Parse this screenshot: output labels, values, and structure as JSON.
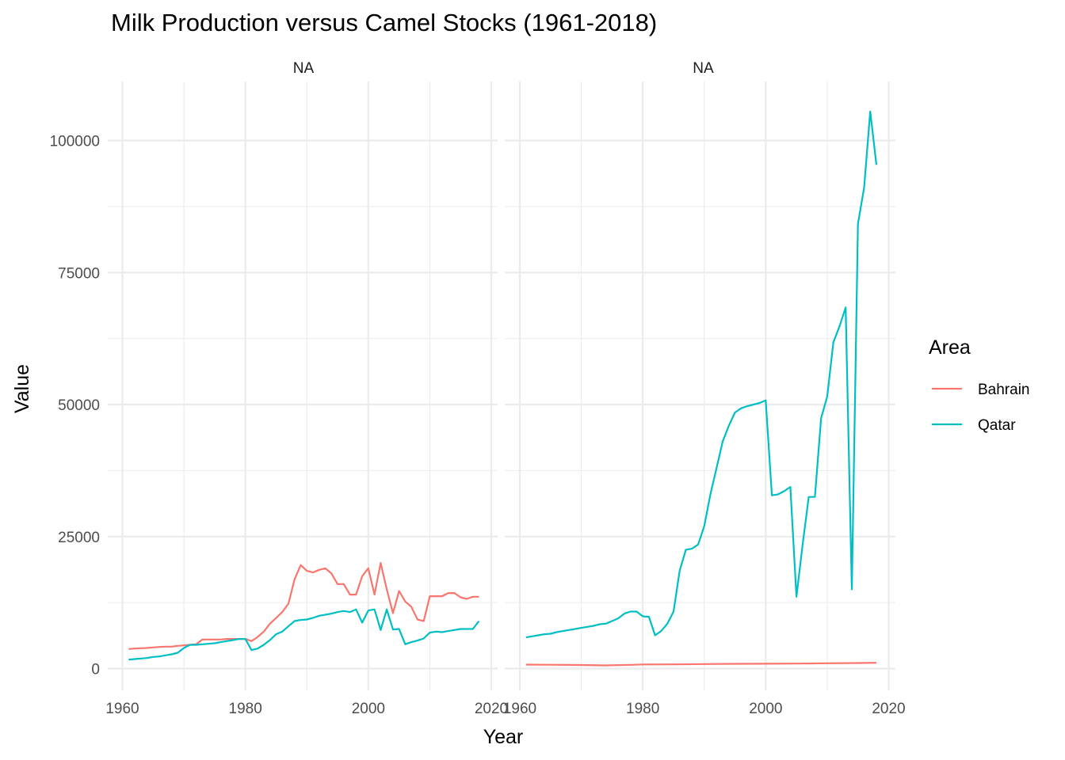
{
  "chart_data": {
    "type": "line",
    "title": "Milk Production versus Camel Stocks (1961-2018)",
    "xlabel": "Year",
    "ylabel": "Value",
    "xlim": [
      1960,
      2020
    ],
    "ylim": [
      0,
      110000
    ],
    "x_ticks": [
      1960,
      1980,
      2000,
      2020
    ],
    "x_tick_labels": [
      "1960",
      "1980",
      "2000",
      "2020"
    ],
    "y_ticks": [
      0,
      25000,
      50000,
      75000,
      100000
    ],
    "y_tick_labels": [
      "0",
      "25000",
      "50000",
      "75000",
      "100000"
    ],
    "grid": true,
    "legend": {
      "title": "Area",
      "position": "right",
      "entries": [
        {
          "name": "Bahrain",
          "color": "#F8766D"
        },
        {
          "name": "Qatar",
          "color": "#00BFC4"
        }
      ]
    },
    "panels": [
      {
        "strip_label": "NA",
        "series": [
          {
            "name": "Bahrain",
            "color": "#F8766D",
            "points": [
              [
                1961,
                3700
              ],
              [
                1962,
                3800
              ],
              [
                1963,
                3850
              ],
              [
                1964,
                3900
              ],
              [
                1965,
                4000
              ],
              [
                1966,
                4100
              ],
              [
                1967,
                4150
              ],
              [
                1968,
                4150
              ],
              [
                1969,
                4300
              ],
              [
                1970,
                4400
              ],
              [
                1971,
                4500
              ],
              [
                1972,
                4600
              ],
              [
                1973,
                5500
              ],
              [
                1974,
                5500
              ],
              [
                1975,
                5500
              ],
              [
                1976,
                5500
              ],
              [
                1977,
                5600
              ],
              [
                1978,
                5600
              ],
              [
                1979,
                5600
              ],
              [
                1980,
                5600
              ],
              [
                1981,
                5200
              ],
              [
                1982,
                6000
              ],
              [
                1983,
                7000
              ],
              [
                1984,
                8500
              ],
              [
                1985,
                9600
              ],
              [
                1986,
                10700
              ],
              [
                1987,
                12300
              ],
              [
                1988,
                16900
              ],
              [
                1989,
                19600
              ],
              [
                1990,
                18500
              ],
              [
                1991,
                18200
              ],
              [
                1992,
                18700
              ],
              [
                1993,
                19000
              ],
              [
                1994,
                18000
              ],
              [
                1995,
                16000
              ],
              [
                1996,
                16000
              ],
              [
                1997,
                14000
              ],
              [
                1998,
                14000
              ],
              [
                1999,
                17500
              ],
              [
                2000,
                19000
              ],
              [
                2001,
                14000
              ],
              [
                2002,
                20000
              ],
              [
                2003,
                15000
              ],
              [
                2004,
                10500
              ],
              [
                2005,
                14700
              ],
              [
                2006,
                12700
              ],
              [
                2007,
                11700
              ],
              [
                2008,
                9300
              ],
              [
                2009,
                9000
              ],
              [
                2010,
                13700
              ],
              [
                2011,
                13700
              ],
              [
                2012,
                13700
              ],
              [
                2013,
                14300
              ],
              [
                2014,
                14300
              ],
              [
                2015,
                13500
              ],
              [
                2016,
                13200
              ],
              [
                2017,
                13600
              ],
              [
                2018,
                13600
              ]
            ]
          },
          {
            "name": "Qatar",
            "color": "#00BFC4",
            "points": [
              [
                1961,
                1700
              ],
              [
                1962,
                1800
              ],
              [
                1963,
                1900
              ],
              [
                1964,
                2000
              ],
              [
                1965,
                2200
              ],
              [
                1966,
                2300
              ],
              [
                1967,
                2500
              ],
              [
                1968,
                2700
              ],
              [
                1969,
                3000
              ],
              [
                1970,
                3900
              ],
              [
                1971,
                4500
              ],
              [
                1972,
                4500
              ],
              [
                1973,
                4600
              ],
              [
                1974,
                4700
              ],
              [
                1975,
                4800
              ],
              [
                1976,
                5000
              ],
              [
                1977,
                5200
              ],
              [
                1978,
                5400
              ],
              [
                1979,
                5600
              ],
              [
                1980,
                5600
              ],
              [
                1981,
                3500
              ],
              [
                1982,
                3800
              ],
              [
                1983,
                4500
              ],
              [
                1984,
                5400
              ],
              [
                1985,
                6500
              ],
              [
                1986,
                7000
              ],
              [
                1987,
                8000
              ],
              [
                1988,
                9000
              ],
              [
                1989,
                9200
              ],
              [
                1990,
                9300
              ],
              [
                1991,
                9600
              ],
              [
                1992,
                10000
              ],
              [
                1993,
                10200
              ],
              [
                1994,
                10400
              ],
              [
                1995,
                10700
              ],
              [
                1996,
                10900
              ],
              [
                1997,
                10700
              ],
              [
                1998,
                11200
              ],
              [
                1999,
                8700
              ],
              [
                2000,
                11000
              ],
              [
                2001,
                11200
              ],
              [
                2002,
                7300
              ],
              [
                2003,
                11200
              ],
              [
                2004,
                7400
              ],
              [
                2005,
                7500
              ],
              [
                2006,
                4600
              ],
              [
                2007,
                5000
              ],
              [
                2008,
                5300
              ],
              [
                2009,
                5700
              ],
              [
                2010,
                6800
              ],
              [
                2011,
                7000
              ],
              [
                2012,
                6900
              ],
              [
                2013,
                7100
              ],
              [
                2014,
                7300
              ],
              [
                2015,
                7500
              ],
              [
                2016,
                7500
              ],
              [
                2017,
                7500
              ],
              [
                2018,
                9000
              ]
            ]
          }
        ]
      },
      {
        "strip_label": "NA",
        "series": [
          {
            "name": "Bahrain",
            "color": "#F8766D",
            "points": [
              [
                1961,
                750
              ],
              [
                1965,
                720
              ],
              [
                1970,
                680
              ],
              [
                1974,
                600
              ],
              [
                1978,
                700
              ],
              [
                1980,
                780
              ],
              [
                1985,
                800
              ],
              [
                1990,
                860
              ],
              [
                1995,
                900
              ],
              [
                2000,
                920
              ],
              [
                2005,
                950
              ],
              [
                2010,
                1000
              ],
              [
                2015,
                1050
              ],
              [
                2018,
                1100
              ]
            ]
          },
          {
            "name": "Qatar",
            "color": "#00BFC4",
            "points": [
              [
                1961,
                5900
              ],
              [
                1962,
                6100
              ],
              [
                1963,
                6300
              ],
              [
                1964,
                6500
              ],
              [
                1965,
                6600
              ],
              [
                1966,
                6900
              ],
              [
                1967,
                7100
              ],
              [
                1968,
                7300
              ],
              [
                1969,
                7500
              ],
              [
                1970,
                7700
              ],
              [
                1971,
                7900
              ],
              [
                1972,
                8100
              ],
              [
                1973,
                8400
              ],
              [
                1974,
                8500
              ],
              [
                1975,
                9000
              ],
              [
                1976,
                9500
              ],
              [
                1977,
                10400
              ],
              [
                1978,
                10800
              ],
              [
                1979,
                10800
              ],
              [
                1980,
                9900
              ],
              [
                1981,
                9800
              ],
              [
                1982,
                6300
              ],
              [
                1983,
                7100
              ],
              [
                1984,
                8500
              ],
              [
                1985,
                10800
              ],
              [
                1986,
                18500
              ],
              [
                1987,
                22500
              ],
              [
                1988,
                22700
              ],
              [
                1989,
                23500
              ],
              [
                1990,
                27000
              ],
              [
                1991,
                33000
              ],
              [
                1992,
                38000
              ],
              [
                1993,
                43000
              ],
              [
                1994,
                46000
              ],
              [
                1995,
                48500
              ],
              [
                1996,
                49300
              ],
              [
                1997,
                49700
              ],
              [
                1998,
                50000
              ],
              [
                1999,
                50300
              ],
              [
                2000,
                50800
              ],
              [
                2001,
                32800
              ],
              [
                2002,
                33000
              ],
              [
                2003,
                33600
              ],
              [
                2004,
                34400
              ],
              [
                2005,
                13600
              ],
              [
                2006,
                23500
              ],
              [
                2007,
                32500
              ],
              [
                2008,
                32500
              ],
              [
                2009,
                47400
              ],
              [
                2010,
                51500
              ],
              [
                2011,
                61800
              ],
              [
                2012,
                64800
              ],
              [
                2013,
                68400
              ],
              [
                2014,
                15000
              ],
              [
                2015,
                84200
              ],
              [
                2016,
                91100
              ],
              [
                2017,
                105500
              ],
              [
                2018,
                95400
              ]
            ]
          }
        ]
      }
    ]
  }
}
